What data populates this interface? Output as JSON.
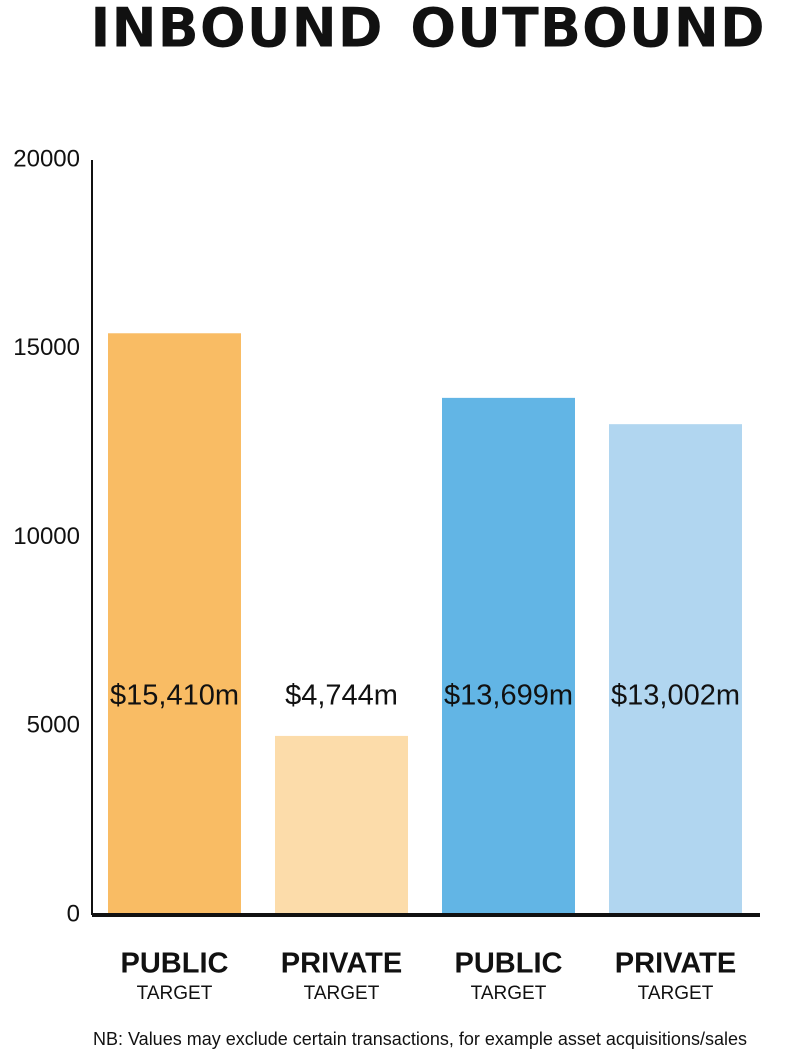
{
  "chart_data": {
    "type": "bar",
    "groups": [
      "INBOUND",
      "OUTBOUND"
    ],
    "categories": [
      "PUBLIC",
      "PRIVATE",
      "PUBLIC",
      "PRIVATE"
    ],
    "category_sublabels": [
      "TARGET",
      "TARGET",
      "TARGET",
      "TARGET"
    ],
    "values": [
      15410,
      4744,
      13699,
      13002
    ],
    "value_labels": [
      "$15,410m",
      "$4,744m",
      "$13,699m",
      "$13,002m"
    ],
    "colors": [
      "#f9bc64",
      "#fcdcaa",
      "#62b5e5",
      "#b1d6f0"
    ],
    "ylim": [
      0,
      20000
    ],
    "yticks": [
      0,
      5000,
      10000,
      15000,
      20000
    ],
    "grid": false,
    "note": "NB: Values may exclude certain transactions, for example asset acquisitions/sales"
  }
}
